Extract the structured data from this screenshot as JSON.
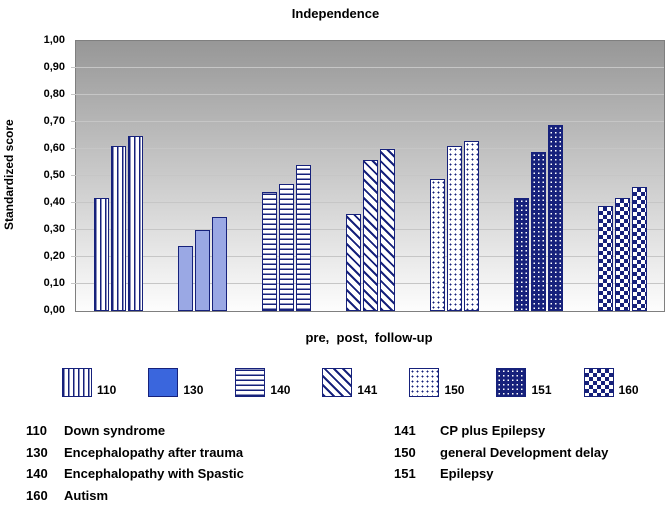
{
  "chart_data": {
    "type": "bar",
    "title": "Independence",
    "ylabel": "Standardized score",
    "xlabel": "pre,  post,  follow-up",
    "ylim": [
      0,
      1.0
    ],
    "ytick_step": 0.1,
    "grid": true,
    "legend_position": "bottom",
    "categories": [
      "pre",
      "post",
      "follow-up"
    ],
    "series": [
      {
        "name": "110",
        "label": "Down syndrome",
        "pattern": "vertical-stripes",
        "values": [
          0.42,
          0.61,
          0.65
        ]
      },
      {
        "name": "130",
        "label": "Encephalopathy after trauma",
        "pattern": "solid",
        "values": [
          0.24,
          0.3,
          0.35
        ]
      },
      {
        "name": "140",
        "label": "Encephalopathy with Spastic",
        "pattern": "horizontal-stripes",
        "values": [
          0.44,
          0.47,
          0.54
        ]
      },
      {
        "name": "141",
        "label": "CP plus Epilepsy",
        "pattern": "diagonal-stripes",
        "values": [
          0.36,
          0.56,
          0.6
        ]
      },
      {
        "name": "150",
        "label": "general Development delay",
        "pattern": "dots-light",
        "values": [
          0.49,
          0.61,
          0.63
        ]
      },
      {
        "name": "151",
        "label": "Epilepsy",
        "pattern": "dots-dark",
        "values": [
          0.42,
          0.59,
          0.69
        ]
      },
      {
        "name": "160",
        "label": "Autism",
        "pattern": "checker",
        "values": [
          0.39,
          0.42,
          0.46
        ]
      }
    ]
  },
  "axes": {
    "y_ticks": [
      "1,00",
      "0,90",
      "0,80",
      "0,70",
      "0,60",
      "0,50",
      "0,40",
      "0,30",
      "0,20",
      "0,10",
      "0,00"
    ]
  },
  "key": {
    "rows": [
      {
        "left_num": "110",
        "left_text": "Down syndrome",
        "right_num": "141",
        "right_text": "CP plus Epilepsy"
      },
      {
        "left_num": "130",
        "left_text": "Encephalopathy after trauma",
        "right_num": "150",
        "right_text": "general Development delay"
      },
      {
        "left_num": "140",
        "left_text": "Encephalopathy with Spastic",
        "right_num": "151",
        "right_text": "Epilepsy"
      },
      {
        "left_num": "160",
        "left_text": "Autism",
        "right_num": "",
        "right_text": ""
      }
    ]
  },
  "colors": {
    "navy": "#16217b",
    "solid_bar": "#9aa8e4",
    "solid_legend": "#3a66dd",
    "plot_top": "#979797",
    "plot_bottom": "#fdfdfd",
    "grid": "#c6c6c6"
  }
}
